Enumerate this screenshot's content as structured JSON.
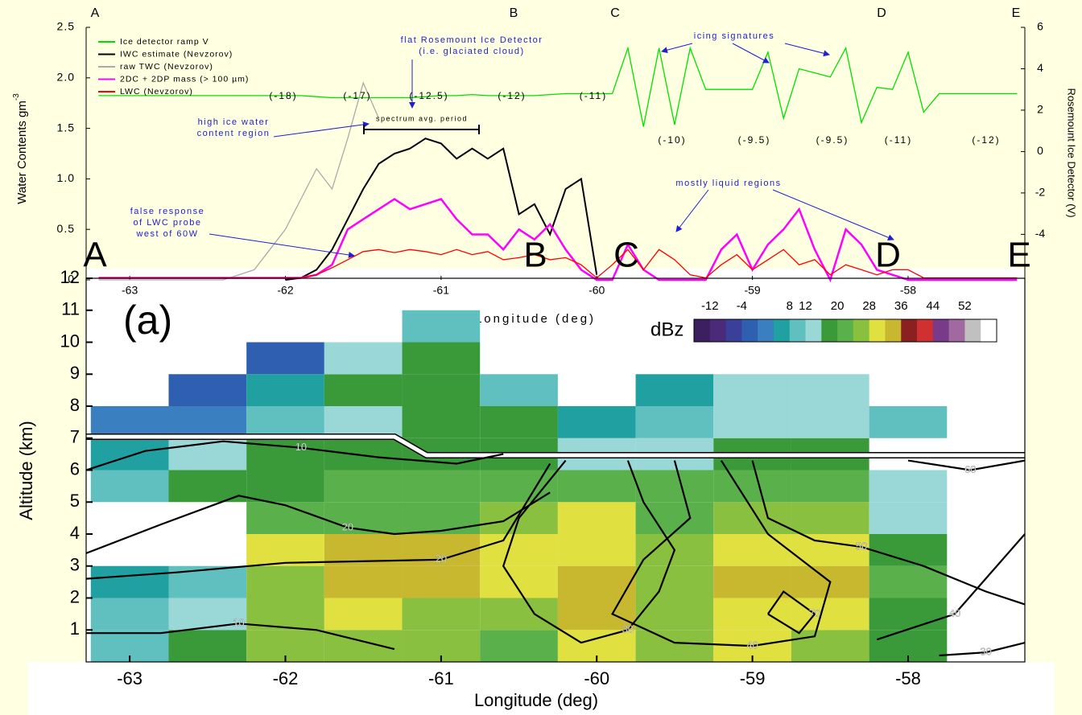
{
  "chart_data": [
    {
      "type": "line",
      "waypoints": [
        "A",
        "B",
        "C",
        "D",
        "E"
      ],
      "ylabel": "Water Contents gm",
      "ylabel_superscript": "-3",
      "y2label": "Rosemount Ice Detector (V)",
      "xlabel": "Longitude (deg)",
      "xlim": [
        -63.28,
        -57.25
      ],
      "xticks": [
        -63,
        -62,
        -61,
        -60,
        -59,
        -58
      ],
      "ylim": [
        0,
        2.5
      ],
      "yticks": [
        0,
        0.5,
        {
          "value": 1,
          "label": "1.0"
        },
        1.5,
        {
          "value": 2,
          "label": "2.0"
        },
        2.5
      ],
      "y2lim": [
        -6.2,
        6
      ],
      "y2ticks": [
        -4,
        -2,
        0,
        2,
        4,
        6
      ],
      "x": [
        -63.2,
        -63.1,
        -63.0,
        -62.9,
        -62.8,
        -62.7,
        -62.6,
        -62.5,
        -62.4,
        -62.3,
        -62.2,
        -62.1,
        -62.0,
        -61.9,
        -61.8,
        -61.7,
        -61.6,
        -61.5,
        -61.4,
        -61.3,
        -61.2,
        -61.1,
        -61.0,
        -60.9,
        -60.8,
        -60.7,
        -60.6,
        -60.5,
        -60.4,
        -60.3,
        -60.2,
        -60.1,
        -60.0,
        -59.9,
        -59.8,
        -59.7,
        -59.6,
        -59.5,
        -59.4,
        -59.3,
        -59.2,
        -59.1,
        -59.0,
        -58.9,
        -58.8,
        -58.7,
        -58.6,
        -58.5,
        -58.4,
        -58.3,
        -58.2,
        -58.1,
        -58.0,
        -57.9,
        -57.8,
        -57.7,
        -57.6,
        -57.5,
        -57.4,
        -57.3
      ],
      "series": [
        {
          "name": "Ice detector ramp V",
          "color": "#00e000",
          "axis": "y2",
          "values": [
            2.7,
            2.7,
            2.7,
            2.7,
            2.7,
            2.7,
            2.7,
            2.7,
            2.7,
            2.7,
            2.7,
            2.7,
            2.7,
            2.7,
            2.65,
            2.6,
            2.6,
            2.6,
            2.6,
            2.6,
            2.6,
            2.65,
            2.7,
            2.7,
            2.75,
            2.7,
            2.7,
            2.7,
            2.7,
            2.75,
            2.8,
            2.8,
            2.8,
            2.8,
            5.0,
            1.2,
            5.0,
            1.3,
            5.0,
            3.0,
            3.0,
            3.0,
            3.0,
            4.8,
            1.6,
            4.0,
            3.8,
            3.6,
            5.0,
            1.4,
            3.1,
            3.0,
            4.8,
            1.9,
            2.8,
            2.8,
            2.8,
            2.8,
            2.8,
            2.8
          ]
        },
        {
          "name": "IWC estimate (Nevzorov)",
          "color": "#000000",
          "values": [
            null,
            null,
            null,
            null,
            null,
            null,
            null,
            null,
            null,
            null,
            null,
            null,
            0,
            0.02,
            0.1,
            0.3,
            0.6,
            0.9,
            1.15,
            1.25,
            1.3,
            1.4,
            1.35,
            1.2,
            1.3,
            1.2,
            1.3,
            0.65,
            0.75,
            0.45,
            0.9,
            1.0,
            0.05,
            null,
            null,
            null,
            null,
            null,
            null,
            null,
            null,
            null,
            null,
            null,
            null,
            null,
            null,
            null,
            null,
            null,
            null,
            null,
            null,
            null,
            null,
            null,
            null,
            null,
            null,
            null
          ]
        },
        {
          "name": "raw TWC (Nevzorov)",
          "color": "#aaaaaa",
          "values": [
            0,
            0,
            0,
            0,
            0,
            0,
            0,
            0,
            0,
            0.05,
            0.1,
            0.3,
            0.5,
            0.8,
            1.1,
            0.9,
            1.4,
            1.95,
            1.6,
            null,
            null,
            null,
            null,
            null,
            null,
            null,
            null,
            null,
            null,
            null,
            null,
            null,
            null,
            null,
            null,
            null,
            null,
            null,
            null,
            null,
            null,
            null,
            null,
            null,
            null,
            null,
            null,
            null,
            null,
            null,
            null,
            null,
            null,
            null,
            null,
            null,
            null,
            null,
            null,
            null
          ]
        },
        {
          "name": "2DC + 2DP mass (> 100 µm)",
          "color": "#ff00ff",
          "values": [
            0.02,
            0.02,
            0.02,
            0.02,
            0.02,
            0.02,
            0.02,
            0.02,
            0.02,
            0.02,
            0.02,
            0.02,
            0.02,
            0.02,
            0.05,
            0.15,
            0.5,
            0.6,
            0.7,
            0.8,
            0.7,
            0.75,
            0.8,
            0.6,
            0.45,
            0.45,
            0.3,
            0.5,
            0.4,
            0.55,
            0.3,
            0.1,
            0,
            0,
            0.35,
            0.1,
            0,
            0,
            0,
            0,
            0.3,
            0.45,
            0.1,
            0.35,
            0.5,
            0.7,
            0.3,
            0,
            0.5,
            0.35,
            0.1,
            0.05,
            0,
            0,
            0,
            0,
            0,
            0,
            0,
            0
          ]
        },
        {
          "name": "LWC (Nevzorov)",
          "color": "#ff0000",
          "values": [
            0.02,
            0.02,
            0.02,
            0.02,
            0.02,
            0.02,
            0.02,
            0.02,
            0.02,
            0.02,
            0.02,
            0.02,
            0.02,
            0.02,
            0.05,
            0.12,
            0.2,
            0.28,
            0.3,
            0.27,
            0.3,
            0.28,
            0.25,
            0.3,
            0.25,
            0.28,
            0.2,
            0.22,
            0.25,
            0.2,
            0.22,
            0.15,
            0.02,
            0.15,
            0.3,
            0.1,
            0.3,
            0.2,
            0.05,
            0.02,
            0.15,
            0.25,
            0.1,
            0.2,
            0.3,
            0.15,
            0.2,
            0.05,
            0.15,
            0.1,
            0.05,
            0.1,
            0.1,
            0.02,
            0.02,
            0.02,
            0.02,
            0.02,
            0.02,
            0.02
          ]
        }
      ],
      "temperature_labels": [
        "(-18)",
        "(-17)",
        "(-12.5)",
        "(-12)",
        "(-11)",
        "(-10)",
        "(-9.5)",
        "(-9.5)",
        "(-11)",
        "(-12)"
      ],
      "annotations": [
        [
          "flat Rosemount Ice Detector",
          "(i.e. glaciated cloud)"
        ],
        [
          "icing signatures"
        ],
        [
          "high ice water",
          "content region"
        ],
        [
          "spectrum avg. period"
        ],
        [
          "false response",
          "of LWC probe",
          "west of 60W"
        ],
        [
          "mostly liquid regions"
        ]
      ]
    },
    {
      "type": "heatmap",
      "panel_label": "(a)",
      "xlabel": "Longitude (deg)",
      "ylabel": "Altitude (km)",
      "xlim": [
        -63.28,
        -57.25
      ],
      "xticks": [
        -63,
        -62,
        -61,
        -60,
        -59,
        -58
      ],
      "ylim": [
        0,
        12
      ],
      "yticks": [
        1,
        2,
        3,
        4,
        5,
        6,
        7,
        8,
        9,
        10,
        11,
        12
      ],
      "x": [
        -63.0,
        -62.5,
        -62.0,
        -61.5,
        -61.0,
        -60.5,
        -60.0,
        -59.5,
        -59.0,
        -58.5,
        -58.0
      ],
      "y": [
        0.5,
        1.5,
        2.5,
        3.5,
        4.5,
        5.5,
        6.5,
        7.5,
        8.5,
        9.5,
        10.5
      ],
      "values": [
        [
          8,
          16,
          24,
          26,
          24,
          22,
          30,
          26,
          28,
          26,
          16
        ],
        [
          8,
          12,
          24,
          28,
          26,
          24,
          32,
          26,
          30,
          30,
          18
        ],
        [
          4,
          8,
          26,
          34,
          34,
          30,
          32,
          24,
          32,
          32,
          20
        ],
        [
          null,
          null,
          30,
          34,
          34,
          30,
          30,
          24,
          28,
          30,
          16
        ],
        [
          null,
          null,
          20,
          22,
          22,
          26,
          28,
          22,
          24,
          26,
          14
        ],
        [
          8,
          16,
          18,
          20,
          20,
          20,
          20,
          20,
          20,
          20,
          12
        ],
        [
          4,
          12,
          16,
          18,
          18,
          16,
          12,
          14,
          16,
          16,
          null
        ],
        [
          0,
          0,
          8,
          14,
          16,
          16,
          4,
          8,
          12,
          14,
          8
        ],
        [
          null,
          -4,
          4,
          16,
          18,
          10,
          null,
          4,
          14,
          12,
          null
        ],
        [
          null,
          null,
          -4,
          12,
          16,
          null,
          null,
          null,
          null,
          null,
          null
        ],
        [
          null,
          null,
          null,
          null,
          8,
          null,
          null,
          null,
          null,
          null,
          null
        ]
      ],
      "colorbar": {
        "label": "dBz",
        "lim": [
          -16,
          60
        ],
        "ticks": [
          -12,
          -4,
          8,
          12,
          20,
          28,
          36,
          44,
          52
        ],
        "colors": [
          "#3b1f5e",
          "#4b2a7a",
          "#3a3f9a",
          "#2f5fb0",
          "#3a7fc0",
          "#20a0a0",
          "#60c0c0",
          "#9ad8d8",
          "#3a9a3a",
          "#5ab04a",
          "#8ac040",
          "#e0e040",
          "#c8b830",
          "#8b2020",
          "#d03030",
          "#7a3a8a",
          "#a06aa0",
          "#c0c0c0",
          "#ffffff"
        ]
      },
      "contours": [
        {
          "level": 10,
          "x": [
            -63.28,
            -62.9,
            -62.4,
            -61.9,
            -61.4,
            -60.9,
            -60.6
          ],
          "y": [
            6.0,
            6.6,
            6.9,
            6.7,
            6.4,
            6.2,
            6.5
          ]
        },
        {
          "level": 20,
          "x": [
            -63.28,
            -62.8,
            -62.3,
            -62.0,
            -61.6,
            -61.3,
            -61.0,
            -60.6,
            -60.3
          ],
          "y": [
            3.4,
            4.3,
            5.2,
            4.9,
            4.2,
            4.0,
            4.1,
            4.4,
            5.3
          ]
        },
        {
          "level": 20,
          "x": [
            -63.28,
            -62.7,
            -62.0,
            -61.0,
            -60.6,
            -60.3
          ],
          "y": [
            2.6,
            2.8,
            3.1,
            3.2,
            3.8,
            6.2
          ]
        },
        {
          "level": 10,
          "x": [
            -63.28,
            -62.8,
            -62.3,
            -61.8,
            -61.3
          ],
          "y": [
            0.9,
            0.9,
            1.2,
            1.0,
            0.4
          ]
        },
        {
          "level": 30,
          "x": [
            -60.2,
            -60.5,
            -60.6,
            -60.4,
            -60.1,
            -59.8,
            -59.6,
            -59.5,
            -59.7,
            -59.8
          ],
          "y": [
            6.3,
            4.5,
            3.0,
            1.5,
            0.6,
            1.0,
            2.2,
            3.5,
            5.0,
            6.3
          ]
        },
        {
          "level": 40,
          "x": [
            -59.5,
            -59.4,
            -59.7,
            -59.9,
            -59.5,
            -59.0,
            -58.6,
            -58.5,
            -58.9,
            -59.2
          ],
          "y": [
            6.3,
            4.5,
            3.2,
            1.5,
            0.6,
            0.5,
            0.8,
            2.5,
            4.0,
            6.3
          ]
        },
        {
          "level": 50,
          "x": [
            -59.0,
            -58.9,
            -58.6,
            -58.3,
            -57.9,
            -57.5,
            -57.25
          ],
          "y": [
            6.3,
            4.5,
            3.8,
            3.6,
            3.0,
            2.2,
            1.8
          ]
        },
        {
          "level": 60,
          "x": [
            -58.0,
            -57.6,
            -57.25
          ],
          "y": [
            6.3,
            6.0,
            6.3
          ]
        },
        {
          "level": 70,
          "x": [
            -58.9,
            -58.7,
            -58.6,
            -58.8,
            -58.9
          ],
          "y": [
            1.5,
            0.9,
            1.5,
            2.2,
            1.5
          ]
        },
        {
          "level": 40,
          "x": [
            -58.2,
            -57.7,
            -57.25
          ],
          "y": [
            0.7,
            1.5,
            4.0
          ]
        },
        {
          "level": 30,
          "x": [
            -57.8,
            -57.5,
            -57.25
          ],
          "y": [
            0.2,
            0.3,
            0.6
          ]
        }
      ]
    }
  ]
}
